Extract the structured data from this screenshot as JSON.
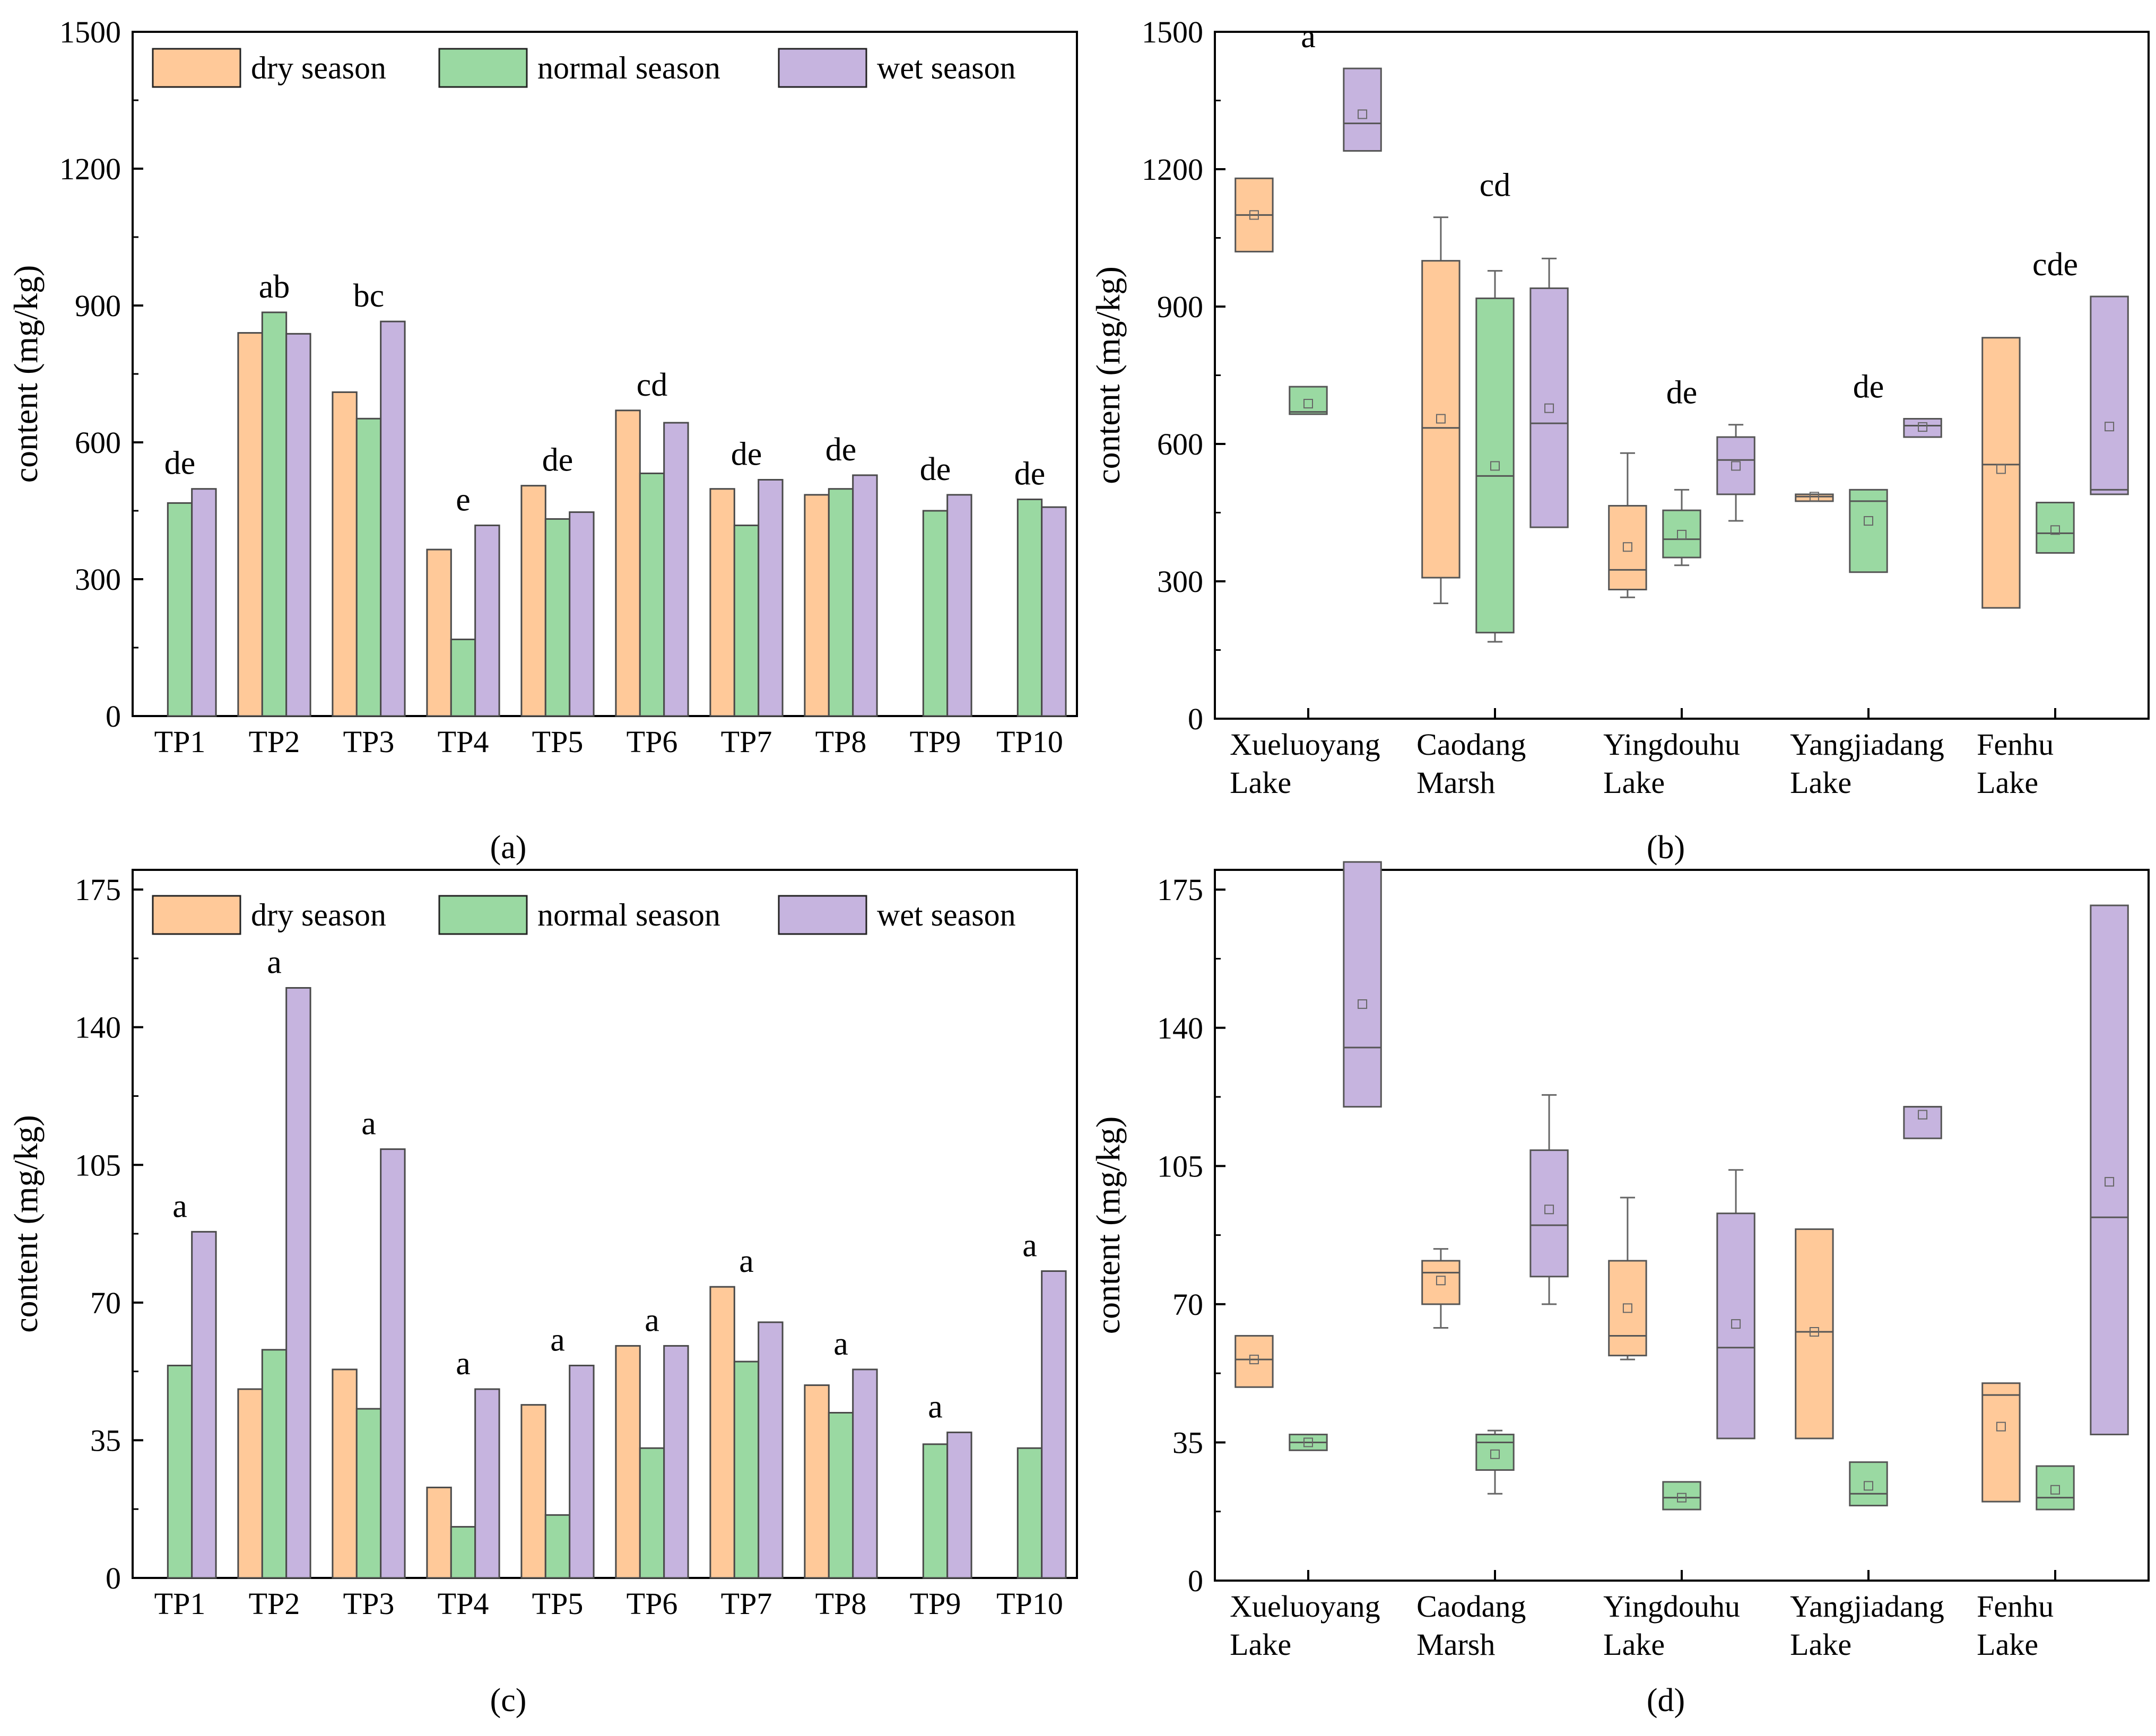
{
  "colors": {
    "dry": "#FFC999",
    "normal": "#9AD9A2",
    "wet": "#C6B4DF",
    "outline": "#4a4a4a"
  },
  "legend": {
    "dry": "dry season",
    "normal": "normal season",
    "wet": "wet season"
  },
  "chart_data": [
    {
      "panel": "(a)",
      "type": "bar",
      "ylabel": "content (mg/kg)",
      "ylim": [
        0,
        1500
      ],
      "yticks": [
        0,
        300,
        600,
        900,
        1200,
        1500
      ],
      "categories": [
        "TP1",
        "TP2",
        "TP3",
        "TP4",
        "TP5",
        "TP6",
        "TP7",
        "TP8",
        "TP9",
        "TP10"
      ],
      "series": [
        {
          "name": "dry season",
          "key": "dry",
          "values": [
            null,
            840,
            710,
            365,
            505,
            670,
            498,
            485,
            null,
            null
          ]
        },
        {
          "name": "normal season",
          "key": "normal",
          "values": [
            467,
            885,
            652,
            168,
            432,
            532,
            418,
            498,
            450,
            475
          ]
        },
        {
          "name": "wet season",
          "key": "wet",
          "values": [
            498,
            838,
            865,
            418,
            447,
            643,
            518,
            528,
            485,
            458
          ]
        }
      ],
      "letters": [
        "de",
        "ab",
        "bc",
        "e",
        "de",
        "cd",
        "de",
        "de",
        "de",
        "de"
      ]
    },
    {
      "panel": "(b)",
      "type": "box",
      "ylabel": "content (mg/kg)",
      "ylim": [
        0,
        1500
      ],
      "yticks": [
        0,
        300,
        600,
        900,
        1200,
        1500
      ],
      "groups": [
        "Xueluoyang Lake",
        "Caodang Marsh",
        "Yingdouhu Lake",
        "Yangjiadang Lake",
        "Fenhu Lake"
      ],
      "boxes": [
        [
          {
            "q1": 1020,
            "med": 1100,
            "q3": 1180,
            "mean": 1100
          },
          {
            "q1": 665,
            "med": 670,
            "q3": 725,
            "mean": 688
          },
          {
            "q1": 1240,
            "med": 1300,
            "q3": 1420,
            "mean": 1320
          }
        ],
        [
          {
            "q1": 308,
            "med": 635,
            "q3": 1000,
            "min": 252,
            "max": 1095,
            "mean": 655
          },
          {
            "q1": 188,
            "med": 530,
            "q3": 918,
            "min": 168,
            "max": 978,
            "mean": 552
          },
          {
            "q1": 418,
            "med": 645,
            "q3": 940,
            "max": 1005,
            "mean": 678
          }
        ],
        [
          {
            "q1": 282,
            "med": 325,
            "q3": 465,
            "min": 265,
            "max": 580,
            "mean": 375
          },
          {
            "q1": 352,
            "med": 392,
            "q3": 455,
            "min": 335,
            "max": 500,
            "mean": 402
          },
          {
            "q1": 490,
            "med": 565,
            "q3": 615,
            "min": 432,
            "max": 642,
            "mean": 552
          }
        ],
        [
          {
            "q1": 475,
            "med": 485,
            "q3": 490,
            "mean": 485
          },
          {
            "q1": 320,
            "med": 475,
            "q3": 500,
            "mean": 432
          },
          {
            "q1": 615,
            "med": 640,
            "q3": 655,
            "mean": 637
          }
        ],
        [
          {
            "q1": 242,
            "med": 555,
            "q3": 832,
            "mean": 545
          },
          {
            "q1": 362,
            "med": 405,
            "q3": 472,
            "mean": 412
          },
          {
            "q1": 490,
            "med": 500,
            "q3": 922,
            "mean": 638
          }
        ]
      ],
      "letters": [
        "a",
        "cd",
        "de",
        "de",
        "cde"
      ]
    },
    {
      "panel": "(c)",
      "type": "bar",
      "ylabel": "content (mg/kg)",
      "ylim": [
        0,
        180
      ],
      "yticks": [
        0,
        35,
        70,
        105,
        140,
        175
      ],
      "categories": [
        "TP1",
        "TP2",
        "TP3",
        "TP4",
        "TP5",
        "TP6",
        "TP7",
        "TP8",
        "TP9",
        "TP10"
      ],
      "series": [
        {
          "name": "dry season",
          "key": "dry",
          "values": [
            null,
            48,
            53,
            23,
            44,
            59,
            74,
            49,
            null,
            null
          ]
        },
        {
          "name": "normal season",
          "key": "normal",
          "values": [
            54,
            58,
            43,
            13,
            16,
            33,
            55,
            42,
            34,
            33
          ]
        },
        {
          "name": "wet season",
          "key": "wet",
          "values": [
            88,
            150,
            109,
            48,
            54,
            59,
            65,
            53,
            37,
            78
          ]
        }
      ],
      "letters": [
        "a",
        "a",
        "a",
        "a",
        "a",
        "a",
        "a",
        "a",
        "a",
        "a"
      ]
    },
    {
      "panel": "(d)",
      "type": "box",
      "ylabel": "content (mg/kg)",
      "ylim": [
        0,
        180
      ],
      "yticks": [
        0,
        35,
        70,
        105,
        140,
        175
      ],
      "groups": [
        "Xueluoyang Lake",
        "Caodang Marsh",
        "Yingdouhu Lake",
        "Yangjiadang Lake",
        "Fenhu Lake"
      ],
      "boxes": [
        [
          {
            "q1": 49,
            "med": 56,
            "q3": 62,
            "mean": 56
          },
          {
            "q1": 33,
            "med": 35,
            "q3": 37,
            "mean": 35
          },
          {
            "q1": 120,
            "med": 135,
            "q3": 182,
            "mean": 146
          }
        ],
        [
          {
            "q1": 70,
            "med": 78,
            "q3": 81,
            "min": 64,
            "max": 84,
            "mean": 76
          },
          {
            "q1": 28,
            "med": 35,
            "q3": 37,
            "min": 22,
            "max": 38,
            "mean": 32
          },
          {
            "q1": 77,
            "med": 90,
            "q3": 109,
            "min": 70,
            "max": 123,
            "mean": 94
          }
        ],
        [
          {
            "q1": 57,
            "med": 62,
            "q3": 81,
            "min": 56,
            "max": 97,
            "mean": 69
          },
          {
            "q1": 18,
            "med": 21,
            "q3": 25,
            "mean": 21
          },
          {
            "q1": 36,
            "med": 59,
            "q3": 93,
            "min": 36,
            "max": 104,
            "mean": 65
          }
        ],
        [
          {
            "q1": 36,
            "med": 63,
            "q3": 89,
            "mean": 63
          },
          {
            "q1": 19,
            "med": 22,
            "q3": 30,
            "mean": 24
          },
          {
            "q1": 112,
            "med": 120,
            "q3": 120,
            "mean": 118
          }
        ],
        [
          {
            "q1": 20,
            "med": 47,
            "q3": 50,
            "mean": 39
          },
          {
            "q1": 18,
            "med": 21,
            "q3": 29,
            "mean": 23
          },
          {
            "q1": 37,
            "med": 92,
            "q3": 171,
            "mean": 101
          }
        ]
      ],
      "letters": []
    }
  ]
}
